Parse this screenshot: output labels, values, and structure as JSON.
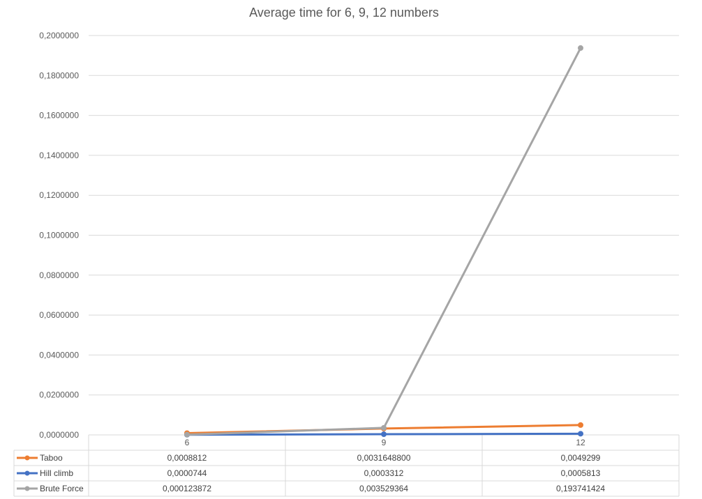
{
  "chart_data": {
    "type": "line",
    "title": "Average time for 6, 9, 12 numbers",
    "xlabel": "",
    "ylabel": "",
    "categories": [
      "6",
      "9",
      "12"
    ],
    "ylim": [
      0,
      0.2
    ],
    "y_ticks": [
      "0,0000000",
      "0,0200000",
      "0,0400000",
      "0,0600000",
      "0,0800000",
      "0,1000000",
      "0,1200000",
      "0,1400000",
      "0,1600000",
      "0,1800000",
      "0,2000000"
    ],
    "grid": true,
    "legend": "data-table",
    "series": [
      {
        "name": "Taboo",
        "color": "#ED7D31",
        "values": [
          0.0008812,
          0.00316488,
          0.0049299
        ],
        "labels": [
          "0,0008812",
          "0,0031648800",
          "0,0049299"
        ]
      },
      {
        "name": "Hill climb",
        "color": "#4472C4",
        "values": [
          7.44e-05,
          0.0003312,
          0.0005813
        ],
        "labels": [
          "0,0000744",
          "0,0003312",
          "0,0005813"
        ]
      },
      {
        "name": "Brute Force",
        "color": "#A5A5A5",
        "values": [
          0.000123872,
          0.003529364,
          0.193741424
        ],
        "labels": [
          "0,000123872",
          "0,003529364",
          "0,193741424"
        ]
      }
    ]
  }
}
